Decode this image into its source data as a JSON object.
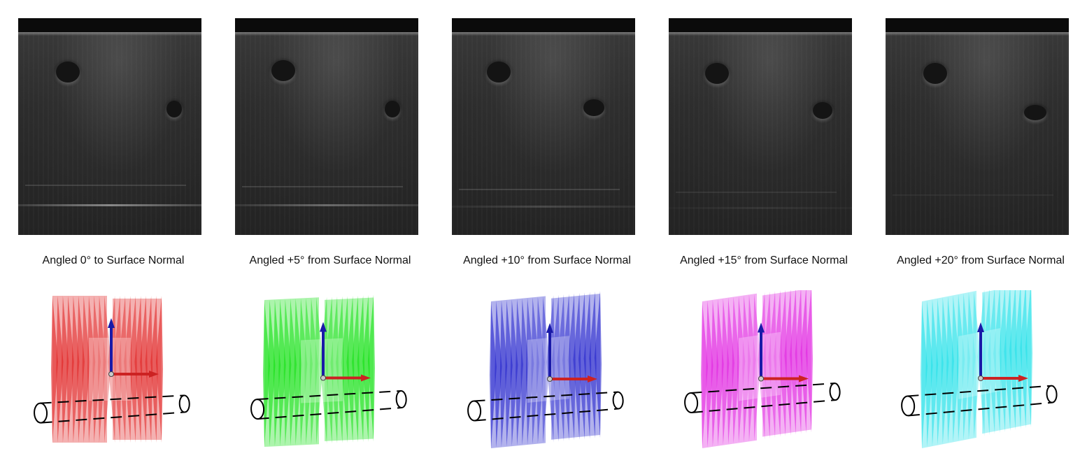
{
  "panels": [
    {
      "caption": "Angled 0° to Surface Normal",
      "fan_color": "#e02020",
      "angle_deg": 0
    },
    {
      "caption": "Angled +5° from Surface Normal",
      "fan_color": "#10e010",
      "angle_deg": 5
    },
    {
      "caption": "Angled +10° from Surface Normal",
      "fan_color": "#2222cc",
      "angle_deg": 10
    },
    {
      "caption": "Angled +15° from Surface Normal",
      "fan_color": "#e020e0",
      "angle_deg": 15
    },
    {
      "caption": "Angled +20° from Surface Normal",
      "fan_color": "#20e0e8",
      "angle_deg": 20
    }
  ],
  "axis_colors": {
    "x": "#cc2222",
    "z": "#1a1aa8"
  }
}
